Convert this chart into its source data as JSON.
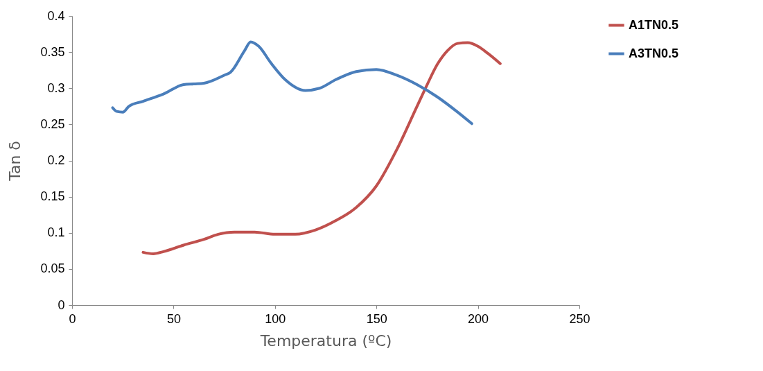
{
  "chart_data": {
    "type": "line",
    "xlabel": "Temperatura (ºC)",
    "ylabel": "Tan δ",
    "xlim": [
      0,
      250
    ],
    "xticks": [
      0,
      50,
      100,
      150,
      200,
      250
    ],
    "ylim": [
      0,
      0.4
    ],
    "yticks": [
      0,
      0.05,
      0.1,
      0.15,
      0.2,
      0.25,
      0.3,
      0.35,
      0.4
    ],
    "grid": false,
    "legend": "right",
    "marker": "none",
    "line_style": "solid",
    "series": [
      {
        "name": "A1TN0.5",
        "color": "#c0504d",
        "x": [
          35,
          40,
          45,
          55,
          65,
          72,
          80,
          90,
          100,
          110,
          120,
          130,
          140,
          150,
          160,
          170,
          175,
          180,
          185,
          190,
          195,
          200,
          205,
          211
        ],
        "values": [
          0.073,
          0.071,
          0.074,
          0.083,
          0.091,
          0.098,
          0.101,
          0.101,
          0.098,
          0.098,
          0.104,
          0.117,
          0.135,
          0.165,
          0.215,
          0.275,
          0.305,
          0.333,
          0.352,
          0.362,
          0.363,
          0.358,
          0.348,
          0.334
        ]
      },
      {
        "name": "A3TN0.5",
        "color": "#4a7ebb",
        "x": [
          20,
          22,
          25,
          28,
          35,
          45,
          55,
          60,
          65,
          75,
          78,
          85,
          88,
          92,
          98,
          105,
          115,
          122,
          130,
          140,
          150,
          160,
          170,
          180,
          190,
          197
        ],
        "values": [
          0.273,
          0.268,
          0.267,
          0.275,
          0.282,
          0.292,
          0.305,
          0.306,
          0.307,
          0.318,
          0.322,
          0.352,
          0.364,
          0.358,
          0.335,
          0.312,
          0.297,
          0.3,
          0.312,
          0.323,
          0.326,
          0.318,
          0.305,
          0.288,
          0.267,
          0.251
        ]
      }
    ]
  }
}
